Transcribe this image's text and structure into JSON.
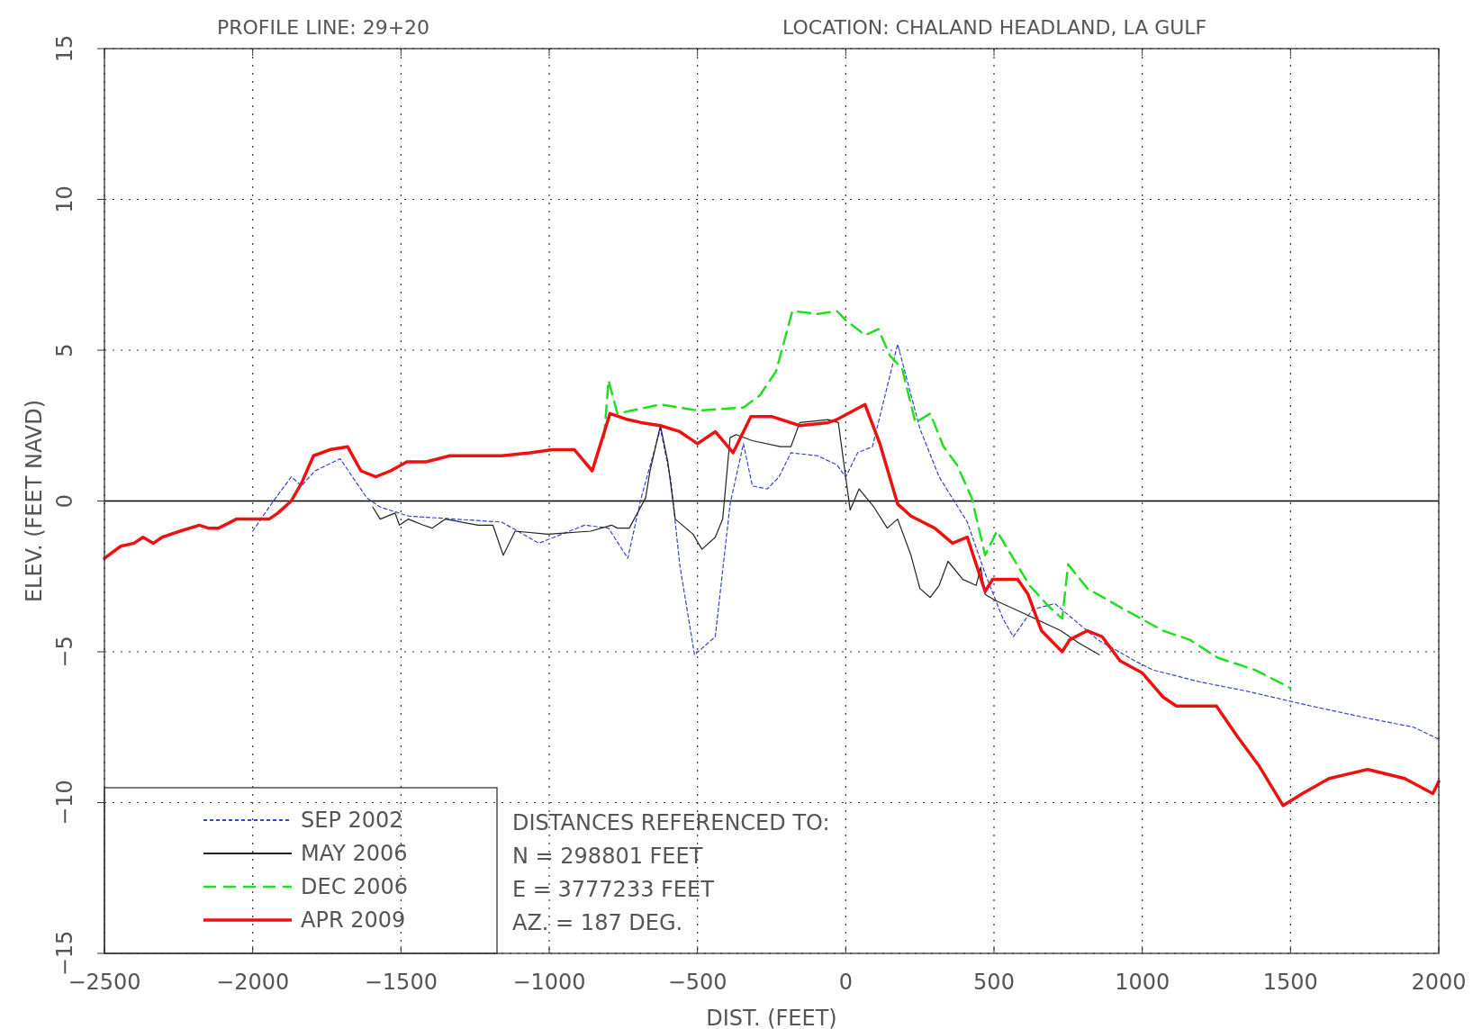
{
  "chart_data": {
    "type": "line",
    "title": "PROFILE LINE: 29+20",
    "subtitle": "LOCATION: CHALAND HEADLAND, LA GULF",
    "xlabel": "DIST. (FEET)",
    "ylabel": "ELEV. (FEET NAVD)",
    "xlim": [
      -2500,
      2000
    ],
    "xticks": [
      -2500,
      -2000,
      -1500,
      -1000,
      -500,
      0,
      500,
      1000,
      1500,
      2000
    ],
    "ylim": [
      -15,
      15
    ],
    "yticks": [
      -15,
      -10,
      -5,
      0,
      5,
      10,
      15
    ],
    "grid": true,
    "legend": "bottom left",
    "ref_lines": [
      {
        "axis": "y",
        "value": 0,
        "color": "#000000",
        "line_style": "solid"
      }
    ],
    "annotations": [
      "DISTANCES REFERENCED TO:",
      "N = 298801 FEET",
      "E = 3777233 FEET",
      "AZ. = 187 DEG."
    ],
    "series": [
      {
        "name": "SEP 2002",
        "color": "#3344cc",
        "line_style": "dotted",
        "x": [
          -2000,
          -1930,
          -1870,
          -1835,
          -1790,
          -1705,
          -1615,
          -1570,
          -1475,
          -1160,
          -1035,
          -880,
          -800,
          -735,
          -690,
          -625,
          -590,
          -560,
          -510,
          -440,
          -390,
          -345,
          -315,
          -265,
          -225,
          -185,
          -95,
          -30,
          0,
          40,
          90,
          175,
          250,
          315,
          410,
          470,
          530,
          565,
          630,
          705,
          850,
          975,
          1035,
          1195,
          1350,
          1570,
          1760,
          1915,
          2000
        ],
        "values": [
          -1.0,
          0,
          0.8,
          0.5,
          1.0,
          1.4,
          0.1,
          -0.2,
          -0.5,
          -0.7,
          -1.4,
          -0.8,
          -0.9,
          -1.9,
          0.1,
          2.4,
          0.7,
          -2.1,
          -5.1,
          -4.5,
          -0.1,
          1.9,
          0.5,
          0.4,
          0.8,
          1.6,
          1.5,
          1.2,
          0.8,
          1.6,
          1.8,
          5.2,
          2.4,
          0.8,
          -0.7,
          -2.4,
          -3.9,
          -4.5,
          -3.6,
          -3.4,
          -4.6,
          -5.3,
          -5.6,
          -6.0,
          -6.3,
          -6.8,
          -7.2,
          -7.5,
          -7.9
        ]
      },
      {
        "name": "MAY 2006",
        "color": "#222222",
        "line_style": "solid",
        "x": [
          -1595,
          -1570,
          -1520,
          -1505,
          -1475,
          -1425,
          -1395,
          -1350,
          -1240,
          -1190,
          -1155,
          -1115,
          -1005,
          -860,
          -790,
          -770,
          -730,
          -675,
          -660,
          -625,
          -600,
          -575,
          -515,
          -485,
          -440,
          -415,
          -390,
          -370,
          -315,
          -220,
          -185,
          -155,
          -60,
          -25,
          15,
          45,
          95,
          140,
          175,
          220,
          250,
          285,
          315,
          345,
          395,
          440,
          455,
          470,
          505,
          595,
          660,
          725,
          785,
          855
        ],
        "values": [
          -0.2,
          -0.6,
          -0.4,
          -0.8,
          -0.6,
          -0.8,
          -0.9,
          -0.6,
          -0.8,
          -0.8,
          -1.8,
          -1.0,
          -1.1,
          -1.0,
          -0.8,
          -0.9,
          -0.9,
          0.1,
          1.0,
          2.5,
          1.3,
          -0.6,
          -1.1,
          -1.6,
          -1.2,
          -0.6,
          2.1,
          2.2,
          2.0,
          1.8,
          1.8,
          2.6,
          2.7,
          2.6,
          -0.3,
          0.4,
          -0.2,
          -0.9,
          -0.6,
          -1.8,
          -2.9,
          -3.2,
          -2.8,
          -2.0,
          -2.6,
          -2.8,
          -2.2,
          -3.1,
          -3.3,
          -3.7,
          -4.0,
          -4.3,
          -4.7,
          -5.1
        ]
      },
      {
        "name": "DEC 2006",
        "color": "#22dd22",
        "line_style": "dashed",
        "x": [
          -815,
          -800,
          -770,
          -625,
          -500,
          -345,
          -290,
          -235,
          -180,
          -95,
          -30,
          0,
          65,
          110,
          150,
          190,
          235,
          285,
          330,
          375,
          425,
          470,
          510,
          565,
          620,
          685,
          730,
          750,
          815,
          940,
          1070,
          1160,
          1255,
          1380,
          1500
        ],
        "values": [
          2.1,
          4.0,
          2.9,
          3.2,
          3.0,
          3.1,
          3.5,
          4.3,
          6.3,
          6.2,
          6.3,
          6.0,
          5.5,
          5.7,
          4.8,
          4.4,
          2.6,
          2.9,
          1.8,
          1.2,
          0.1,
          -1.8,
          -1.0,
          -1.9,
          -2.8,
          -3.5,
          -3.9,
          -2.1,
          -2.9,
          -3.6,
          -4.3,
          -4.6,
          -5.2,
          -5.6,
          -6.2
        ]
      },
      {
        "name": "APR 2009",
        "color": "#ee1111",
        "line_style": "solid",
        "x": [
          -2500,
          -2445,
          -2400,
          -2370,
          -2335,
          -2305,
          -2245,
          -2180,
          -2150,
          -2115,
          -2055,
          -2000,
          -1945,
          -1915,
          -1870,
          -1835,
          -1795,
          -1740,
          -1680,
          -1635,
          -1585,
          -1535,
          -1480,
          -1415,
          -1335,
          -1160,
          -1065,
          -990,
          -915,
          -855,
          -795,
          -735,
          -690,
          -625,
          -560,
          -500,
          -440,
          -380,
          -320,
          -250,
          -155,
          -60,
          -30,
          65,
          115,
          175,
          220,
          300,
          360,
          410,
          470,
          495,
          580,
          615,
          660,
          730,
          755,
          815,
          865,
          925,
          1000,
          1070,
          1115,
          1180,
          1250,
          1320,
          1395,
          1475,
          1540,
          1630,
          1760,
          1885,
          1980,
          2000
        ],
        "values": [
          -1.9,
          -1.5,
          -1.4,
          -1.2,
          -1.4,
          -1.2,
          -1.0,
          -0.8,
          -0.9,
          -0.9,
          -0.6,
          -0.6,
          -0.6,
          -0.4,
          0,
          0.6,
          1.5,
          1.7,
          1.8,
          1.0,
          0.8,
          1.0,
          1.3,
          1.3,
          1.5,
          1.5,
          1.6,
          1.7,
          1.7,
          1.0,
          2.9,
          2.7,
          2.6,
          2.5,
          2.3,
          1.9,
          2.3,
          1.6,
          2.8,
          2.8,
          2.5,
          2.6,
          2.7,
          3.2,
          1.9,
          -0.1,
          -0.5,
          -0.9,
          -1.4,
          -1.2,
          -3.0,
          -2.6,
          -2.6,
          -3.1,
          -4.3,
          -5.0,
          -4.6,
          -4.3,
          -4.5,
          -5.3,
          -5.7,
          -6.5,
          -6.8,
          -6.8,
          -6.8,
          -7.8,
          -8.8,
          -10.1,
          -9.7,
          -9.2,
          -8.9,
          -9.2,
          -9.7,
          -9.3
        ]
      }
    ]
  }
}
